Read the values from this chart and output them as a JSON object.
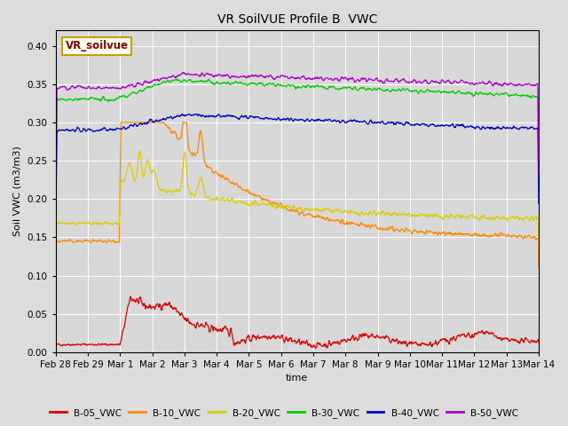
{
  "title": "VR SoilVUE Profile B  VWC",
  "xlabel": "time",
  "ylabel": "Soil VWC (m3/m3)",
  "ylim": [
    0.0,
    0.42
  ],
  "yticks": [
    0.0,
    0.05,
    0.1,
    0.15,
    0.2,
    0.25,
    0.3,
    0.35,
    0.4
  ],
  "background_color": "#dcdcdc",
  "plot_bg_color": "#d8d8d8",
  "legend_box_color": "#fffff0",
  "legend_box_edge": "#c8a000",
  "legend_label": "VR_soilvue",
  "series_names": [
    "B-05_VWC",
    "B-10_VWC",
    "B-20_VWC",
    "B-30_VWC",
    "B-40_VWC",
    "B-50_VWC"
  ],
  "series_colors": [
    "#dd0000",
    "#ff8800",
    "#ddcc00",
    "#00cc00",
    "#0000cc",
    "#aa00cc"
  ],
  "xtick_labels": [
    "Feb 28",
    "Feb 29",
    "Mar 1",
    "Mar 2",
    "Mar 3",
    "Mar 4",
    "Mar 5",
    "Mar 6",
    "Mar 7",
    "Mar 8",
    "Mar 9",
    "Mar 10",
    "Mar 11",
    "Mar 12",
    "Mar 13",
    "Mar 14"
  ],
  "n_points": 1200,
  "title_fontsize": 10,
  "axis_fontsize": 8,
  "tick_fontsize": 7.5
}
